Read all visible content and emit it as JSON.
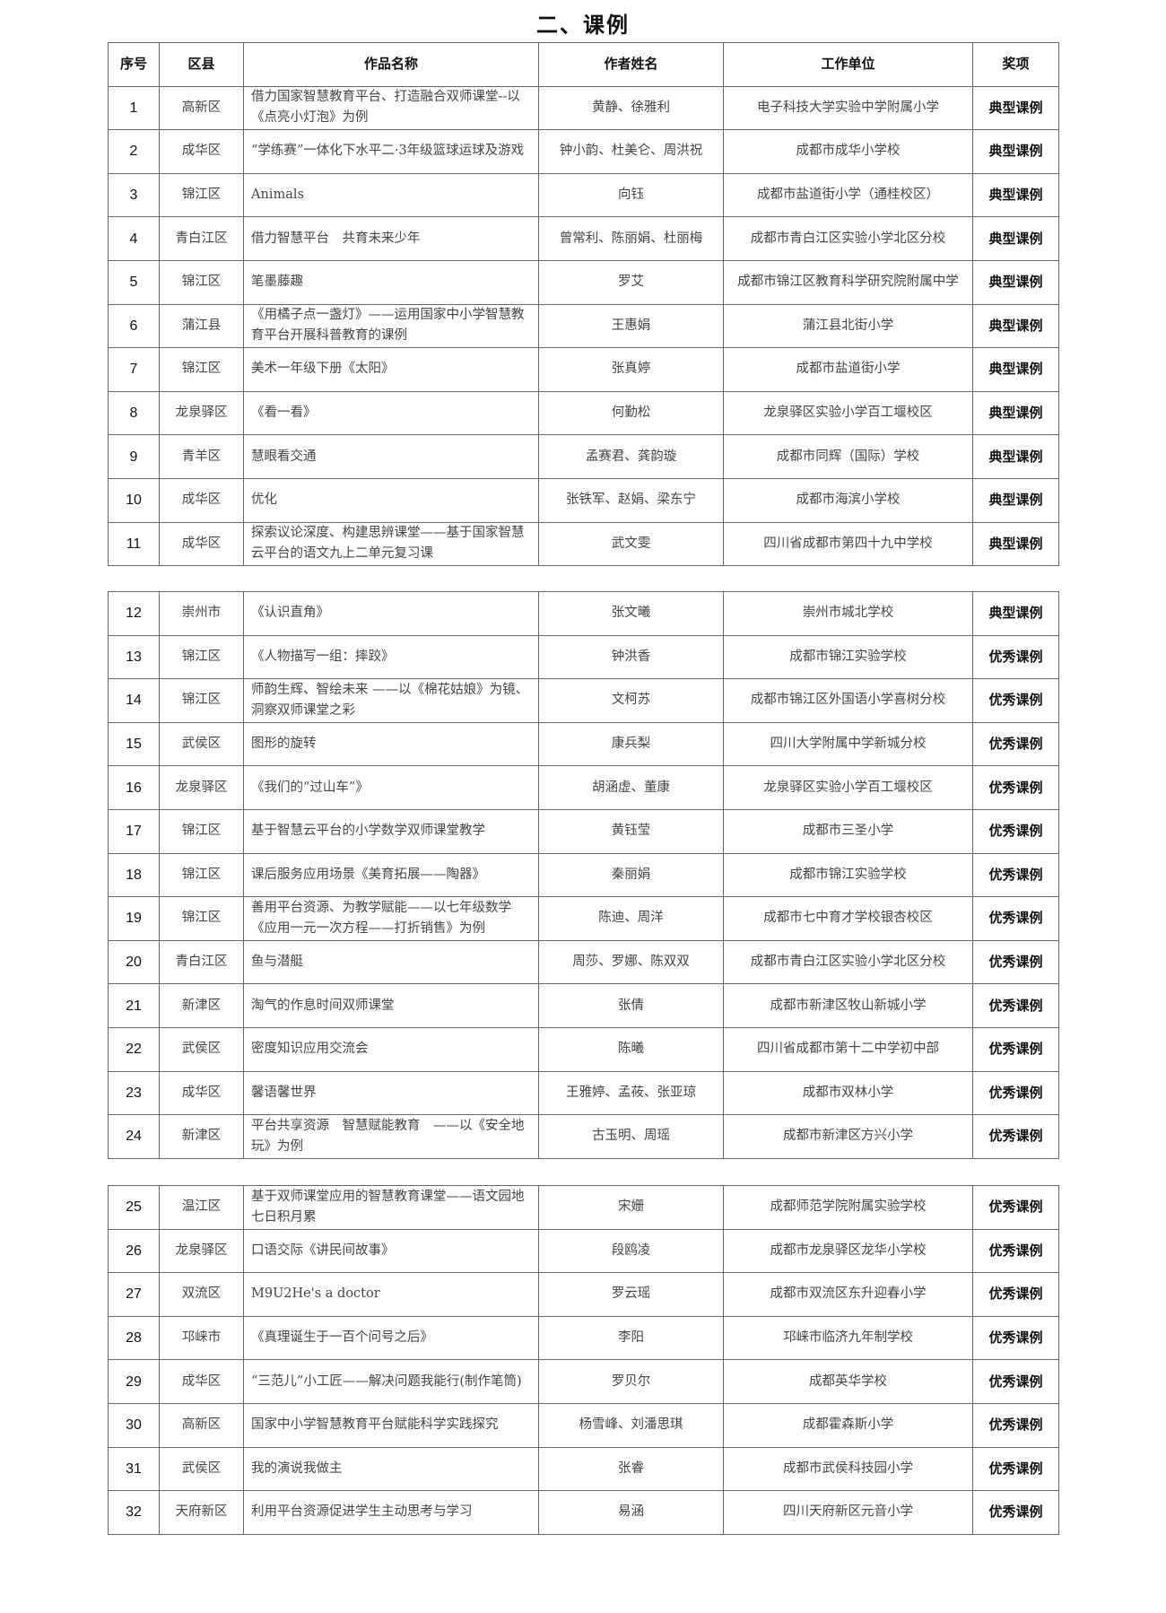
{
  "title": "二、课例",
  "headers": [
    "序号",
    "区县",
    "作品名称",
    "作者姓名",
    "工作单位",
    "奖项"
  ],
  "rows": [
    {
      "no": "1",
      "district": "高新区",
      "work": "借力国家智慧教育平台、打造融合双师课堂--以《点亮小灯泡》为例",
      "authors": "黄静、徐雅利",
      "unit": "电子科技大学实验中学附属小学",
      "award": "典型课例"
    },
    {
      "no": "2",
      "district": "成华区",
      "work": "“学练赛”一体化下水平二·3年级篮球运球及游戏",
      "authors": "钟小韵、杜美仑、周洪祝",
      "unit": "成都市成华小学校",
      "award": "典型课例"
    },
    {
      "no": "3",
      "district": "锦江区",
      "work": "Animals",
      "authors": "向钰",
      "unit": "成都市盐道街小学（通桂校区）",
      "award": "典型课例"
    },
    {
      "no": "4",
      "district": "青白江区",
      "work": "借力智慧平台　共育未来少年",
      "authors": "曾常利、陈丽娟、杜丽梅",
      "unit": "成都市青白江区实验小学北区分校",
      "award": "典型课例"
    },
    {
      "no": "5",
      "district": "锦江区",
      "work": "笔墨藤趣",
      "authors": "罗艾",
      "unit": "成都市锦江区教育科学研究院附属中学",
      "award": "典型课例"
    },
    {
      "no": "6",
      "district": "蒲江县",
      "work": "《用橘子点一盏灯》——运用国家中小学智慧教育平台开展科普教育的课例",
      "authors": "王惠娟",
      "unit": "蒲江县北街小学",
      "award": "典型课例"
    },
    {
      "no": "7",
      "district": "锦江区",
      "work": "美术一年级下册《太阳》",
      "authors": "张真婷",
      "unit": "成都市盐道街小学",
      "award": "典型课例"
    },
    {
      "no": "8",
      "district": "龙泉驿区",
      "work": "《看一看》",
      "authors": "何勤松",
      "unit": "龙泉驿区实验小学百工堰校区",
      "award": "典型课例"
    },
    {
      "no": "9",
      "district": "青羊区",
      "work": "慧眼看交通",
      "authors": "孟赛君、龚韵璇",
      "unit": "成都市同辉（国际）学校",
      "award": "典型课例"
    },
    {
      "no": "10",
      "district": "成华区",
      "work": "优化",
      "authors": "张铁军、赵娟、梁东宁",
      "unit": "成都市海滨小学校",
      "award": "典型课例"
    },
    {
      "no": "11",
      "district": "成华区",
      "work": "探索议论深度、构建思辨课堂——基于国家智慧云平台的语文九上二单元复习课",
      "authors": "武文雯",
      "unit": "四川省成都市第四十九中学校",
      "award": "典型课例"
    },
    {
      "no": "12",
      "district": "崇州市",
      "work": "《认识直角》",
      "authors": "张文曦",
      "unit": "崇州市城北学校",
      "award": "典型课例"
    },
    {
      "no": "13",
      "district": "锦江区",
      "work": "《人物描写一组：摔跤》",
      "authors": "钟洪香",
      "unit": "成都市锦江实验学校",
      "award": "优秀课例"
    },
    {
      "no": "14",
      "district": "锦江区",
      "work": "师韵生辉、智绘未来 ——以《棉花姑娘》为镜、洞察双师课堂之彩",
      "authors": "文柯苏",
      "unit": "成都市锦江区外国语小学喜树分校",
      "award": "优秀课例"
    },
    {
      "no": "15",
      "district": "武侯区",
      "work": "图形的旋转",
      "authors": "康兵梨",
      "unit": "四川大学附属中学新城分校",
      "award": "优秀课例"
    },
    {
      "no": "16",
      "district": "龙泉驿区",
      "work": "《我们的“过山车”》",
      "authors": "胡涵虚、董康",
      "unit": "龙泉驿区实验小学百工堰校区",
      "award": "优秀课例"
    },
    {
      "no": "17",
      "district": "锦江区",
      "work": "基于智慧云平台的小学数学双师课堂教学",
      "authors": "黄钰莹",
      "unit": "成都市三圣小学",
      "award": "优秀课例"
    },
    {
      "no": "18",
      "district": "锦江区",
      "work": "课后服务应用场景《美育拓展——陶器》",
      "authors": "秦丽娟",
      "unit": "成都市锦江实验学校",
      "award": "优秀课例"
    },
    {
      "no": "19",
      "district": "锦江区",
      "work": "善用平台资源、为教学赋能——以七年级数学《应用一元一次方程——打折销售》为例",
      "authors": "陈迪、周洋",
      "unit": "成都市七中育才学校银杏校区",
      "award": "优秀课例"
    },
    {
      "no": "20",
      "district": "青白江区",
      "work": "鱼与潜艇",
      "authors": "周莎、罗娜、陈双双",
      "unit": "成都市青白江区实验小学北区分校",
      "award": "优秀课例"
    },
    {
      "no": "21",
      "district": "新津区",
      "work": "淘气的作息时间双师课堂",
      "authors": "张倩",
      "unit": "成都市新津区牧山新城小学",
      "award": "优秀课例"
    },
    {
      "no": "22",
      "district": "武侯区",
      "work": "密度知识应用交流会",
      "authors": "陈曦",
      "unit": "四川省成都市第十二中学初中部",
      "award": "优秀课例"
    },
    {
      "no": "23",
      "district": "成华区",
      "work": "馨语馨世界",
      "authors": "王雅婷、孟莜、张亚琼",
      "unit": "成都市双林小学",
      "award": "优秀课例"
    },
    {
      "no": "24",
      "district": "新津区",
      "work": "平台共享资源　智慧赋能教育　——以《安全地玩》为例",
      "authors": "古玉明、周瑶",
      "unit": "成都市新津区方兴小学",
      "award": "优秀课例"
    },
    {
      "no": "25",
      "district": "温江区",
      "work": "基于双师课堂应用的智慧教育课堂——语文园地七日积月累",
      "authors": "宋姗",
      "unit": "成都师范学院附属实验学校",
      "award": "优秀课例"
    },
    {
      "no": "26",
      "district": "龙泉驿区",
      "work": "口语交际《讲民间故事》",
      "authors": "段鸥凌",
      "unit": "成都市龙泉驿区龙华小学校",
      "award": "优秀课例"
    },
    {
      "no": "27",
      "district": "双流区",
      "work": "M9U2He's a doctor",
      "authors": "罗云瑶",
      "unit": "成都市双流区东升迎春小学",
      "award": "优秀课例"
    },
    {
      "no": "28",
      "district": "邛崃市",
      "work": "《真理诞生于一百个问号之后》",
      "authors": "李阳",
      "unit": "邛崃市临济九年制学校",
      "award": "优秀课例"
    },
    {
      "no": "29",
      "district": "成华区",
      "work": "“三范儿”小工匠——解决问题我能行(制作笔筒)",
      "authors": "罗贝尔",
      "unit": "成都英华学校",
      "award": "优秀课例"
    },
    {
      "no": "30",
      "district": "高新区",
      "work": "国家中小学智慧教育平台赋能科学实践探究",
      "authors": "杨雪峰、刘潘思琪",
      "unit": "成都霍森斯小学",
      "award": "优秀课例"
    },
    {
      "no": "31",
      "district": "武侯区",
      "work": "我的演说我做主",
      "authors": "张睿",
      "unit": "成都市武侯科技园小学",
      "award": "优秀课例"
    },
    {
      "no": "32",
      "district": "天府新区",
      "work": "利用平台资源促进学生主动思考与学习",
      "authors": "易涵",
      "unit": "四川天府新区元音小学",
      "award": "优秀课例"
    }
  ]
}
